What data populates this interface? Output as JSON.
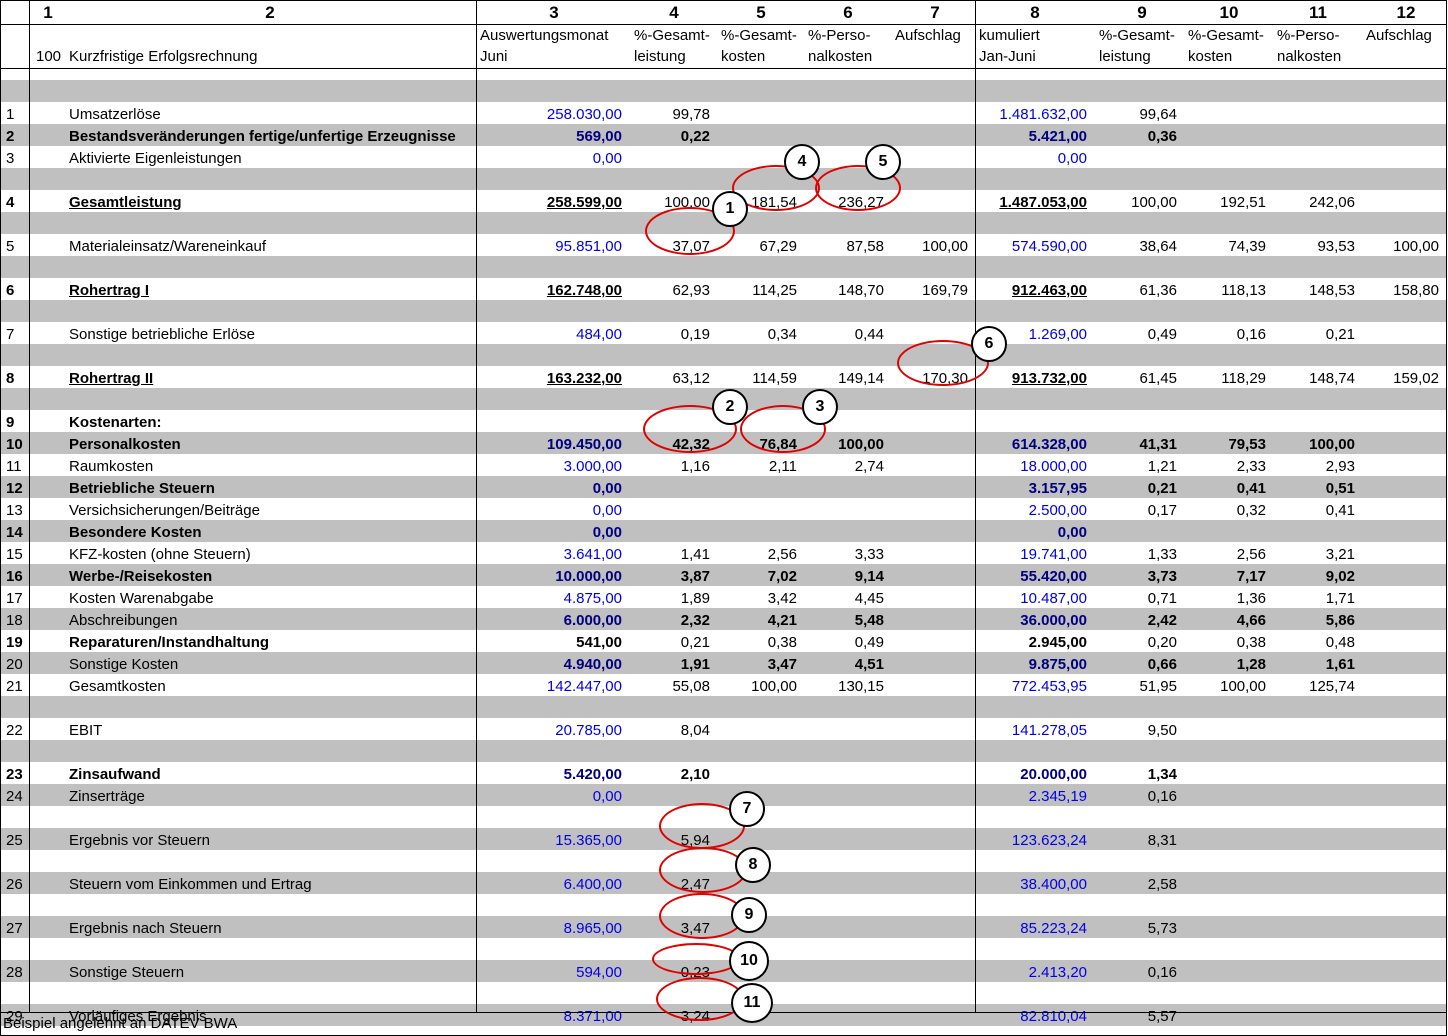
{
  "column_numbers": [
    "1",
    "2",
    "3",
    "4",
    "5",
    "6",
    "7",
    "8",
    "9",
    "10",
    "11",
    "12"
  ],
  "header": {
    "code": "100",
    "title": "Kurzfristige Erfolgsrechnung",
    "c3_line1": "Auswertungsmonat",
    "c3_line2": "Juni",
    "c4_line1": "%-Gesamt-",
    "c4_line2": "leistung",
    "c5_line1": "%-Gesamt-",
    "c5_line2": "kosten",
    "c6_line1": "%-Perso-",
    "c6_line2": "nalkosten",
    "c7_line1": "Aufschlag",
    "c8_line1": "kumuliert",
    "c8_line2": "Jan-Juni",
    "c9_line1": "%-Gesamt-",
    "c9_line2": "leistung",
    "c10_line1": "%-Gesamt-",
    "c10_line2": "kosten",
    "c11_line1": "%-Perso-",
    "c11_line2": "nalkosten",
    "c12_line1": "Aufschlag"
  },
  "rows": [
    {
      "num": "",
      "label": "",
      "vals": []
    },
    {
      "num": "1",
      "label": "Umsatzerlöse",
      "vals": [
        "258.030,00",
        "99,78",
        "",
        "",
        "",
        "1.481.632,00",
        "99,64",
        "",
        "",
        ""
      ]
    },
    {
      "num": "2",
      "label": "Bestandsveränderungen fertige/unfertige Erzeugnisse",
      "vals": [
        "569,00",
        "0,22",
        "",
        "",
        "",
        "5.421,00",
        "0,36",
        "",
        "",
        ""
      ]
    },
    {
      "num": "3",
      "label": "Aktivierte Eigenleistungen",
      "vals": [
        "0,00",
        "",
        "",
        "",
        "",
        "0,00",
        "",
        "",
        "",
        ""
      ]
    },
    {
      "num": "",
      "label": "",
      "vals": []
    },
    {
      "num": "4",
      "label": "Gesamtleistung",
      "vals": [
        "258.599,00",
        "100,00",
        "181,54",
        "236,27",
        "",
        "1.487.053,00",
        "100,00",
        "192,51",
        "242,06",
        ""
      ]
    },
    {
      "num": "",
      "label": "",
      "vals": []
    },
    {
      "num": "5",
      "label": "Materialeinsatz/Wareneinkauf",
      "vals": [
        "95.851,00",
        "37,07",
        "67,29",
        "87,58",
        "100,00",
        "574.590,00",
        "38,64",
        "74,39",
        "93,53",
        "100,00"
      ]
    },
    {
      "num": "",
      "label": "",
      "vals": []
    },
    {
      "num": "6",
      "label": "Rohertrag I",
      "vals": [
        "162.748,00",
        "62,93",
        "114,25",
        "148,70",
        "169,79",
        "912.463,00",
        "61,36",
        "118,13",
        "148,53",
        "158,80"
      ]
    },
    {
      "num": "",
      "label": "",
      "vals": []
    },
    {
      "num": "7",
      "label": "Sonstige betriebliche Erlöse",
      "vals": [
        "484,00",
        "0,19",
        "0,34",
        "0,44",
        "",
        "1.269,00",
        "0,49",
        "0,16",
        "0,21",
        ""
      ]
    },
    {
      "num": "",
      "label": "",
      "vals": []
    },
    {
      "num": "8",
      "label": "Rohertrag II",
      "vals": [
        "163.232,00",
        "63,12",
        "114,59",
        "149,14",
        "170,30",
        "913.732,00",
        "61,45",
        "118,29",
        "148,74",
        "159,02"
      ]
    },
    {
      "num": "",
      "label": "",
      "vals": []
    },
    {
      "num": "9",
      "label": "Kostenarten:",
      "vals": []
    },
    {
      "num": "10",
      "label": "Personalkosten",
      "vals": [
        "109.450,00",
        "42,32",
        "76,84",
        "100,00",
        "",
        "614.328,00",
        "41,31",
        "79,53",
        "100,00",
        ""
      ]
    },
    {
      "num": "11",
      "label": "Raumkosten",
      "vals": [
        "3.000,00",
        "1,16",
        "2,11",
        "2,74",
        "",
        "18.000,00",
        "1,21",
        "2,33",
        "2,93",
        ""
      ]
    },
    {
      "num": "12",
      "label": "Betriebliche Steuern",
      "vals": [
        "0,00",
        "",
        "",
        "",
        "",
        "3.157,95",
        "0,21",
        "0,41",
        "0,51",
        ""
      ]
    },
    {
      "num": "13",
      "label": "Versichsicherungen/Beiträge",
      "vals": [
        "0,00",
        "",
        "",
        "",
        "",
        "2.500,00",
        "0,17",
        "0,32",
        "0,41",
        ""
      ]
    },
    {
      "num": "14",
      "label": "Besondere Kosten",
      "vals": [
        "0,00",
        "",
        "",
        "",
        "",
        "0,00",
        "",
        "",
        "",
        ""
      ]
    },
    {
      "num": "15",
      "label": "KFZ-kosten (ohne Steuern)",
      "vals": [
        "3.641,00",
        "1,41",
        "2,56",
        "3,33",
        "",
        "19.741,00",
        "1,33",
        "2,56",
        "3,21",
        ""
      ]
    },
    {
      "num": "16",
      "label": "Werbe-/Reisekosten",
      "vals": [
        "10.000,00",
        "3,87",
        "7,02",
        "9,14",
        "",
        "55.420,00",
        "3,73",
        "7,17",
        "9,02",
        ""
      ]
    },
    {
      "num": "17",
      "label": "Kosten Warenabgabe",
      "vals": [
        "4.875,00",
        "1,89",
        "3,42",
        "4,45",
        "",
        "10.487,00",
        "0,71",
        "1,36",
        "1,71",
        ""
      ]
    },
    {
      "num": "18",
      "label": "Abschreibungen",
      "vals": [
        "6.000,00",
        "2,32",
        "4,21",
        "5,48",
        "",
        "36.000,00",
        "2,42",
        "4,66",
        "5,86",
        ""
      ]
    },
    {
      "num": "19",
      "label": "Reparaturen/Instandhaltung",
      "vals": [
        "541,00",
        "0,21",
        "0,38",
        "0,49",
        "",
        "2.945,00",
        "0,20",
        "0,38",
        "0,48",
        ""
      ]
    },
    {
      "num": "20",
      "label": "Sonstige Kosten",
      "vals": [
        "4.940,00",
        "1,91",
        "3,47",
        "4,51",
        "",
        "9.875,00",
        "0,66",
        "1,28",
        "1,61",
        ""
      ]
    },
    {
      "num": "21",
      "label": "Gesamtkosten",
      "vals": [
        "142.447,00",
        "55,08",
        "100,00",
        "130,15",
        "",
        "772.453,95",
        "51,95",
        "100,00",
        "125,74",
        ""
      ]
    },
    {
      "num": "",
      "label": "",
      "vals": []
    },
    {
      "num": "22",
      "label": "EBIT",
      "vals": [
        "20.785,00",
        "8,04",
        "",
        "",
        "",
        "141.278,05",
        "9,50",
        "",
        "",
        ""
      ]
    },
    {
      "num": "",
      "label": "",
      "vals": []
    },
    {
      "num": "23",
      "label": "Zinsaufwand",
      "vals": [
        "5.420,00",
        "2,10",
        "",
        "",
        "",
        "20.000,00",
        "1,34",
        "",
        "",
        ""
      ]
    },
    {
      "num": "24",
      "label": "Zinserträge",
      "vals": [
        "0,00",
        "",
        "",
        "",
        "",
        "2.345,19",
        "0,16",
        "",
        "",
        ""
      ]
    },
    {
      "num": "",
      "label": "",
      "vals": []
    },
    {
      "num": "25",
      "label": "Ergebnis vor Steuern",
      "vals": [
        "15.365,00",
        "5,94",
        "",
        "",
        "",
        "123.623,24",
        "8,31",
        "",
        "",
        ""
      ]
    },
    {
      "num": "",
      "label": "",
      "vals": []
    },
    {
      "num": "26",
      "label": "Steuern vom Einkommen und Ertrag",
      "vals": [
        "6.400,00",
        "2,47",
        "",
        "",
        "",
        "38.400,00",
        "2,58",
        "",
        "",
        ""
      ]
    },
    {
      "num": "",
      "label": "",
      "vals": []
    },
    {
      "num": "27",
      "label": "Ergebnis nach Steuern ",
      "vals": [
        "8.965,00",
        "3,47",
        "",
        "",
        "",
        "85.223,24",
        "5,73",
        "",
        "",
        ""
      ]
    },
    {
      "num": "",
      "label": "",
      "vals": []
    },
    {
      "num": "28",
      "label": "Sonstige Steuern",
      "vals": [
        "594,00",
        "0,23",
        "",
        "",
        "",
        "2.413,20",
        "0,16",
        "",
        "",
        ""
      ]
    },
    {
      "num": "",
      "label": "",
      "vals": []
    },
    {
      "num": "29",
      "label": "Vorläufiges Ergebnis",
      "vals": [
        "8.371,00",
        "3,24",
        "",
        "",
        "",
        "82.810,04",
        "5,57",
        "",
        "",
        ""
      ]
    }
  ],
  "annotations": [
    "1",
    "2",
    "3",
    "4",
    "5",
    "6",
    "7",
    "8",
    "9",
    "10",
    "11"
  ],
  "footer": "Beispiel angelehnt an DATEV BWA"
}
